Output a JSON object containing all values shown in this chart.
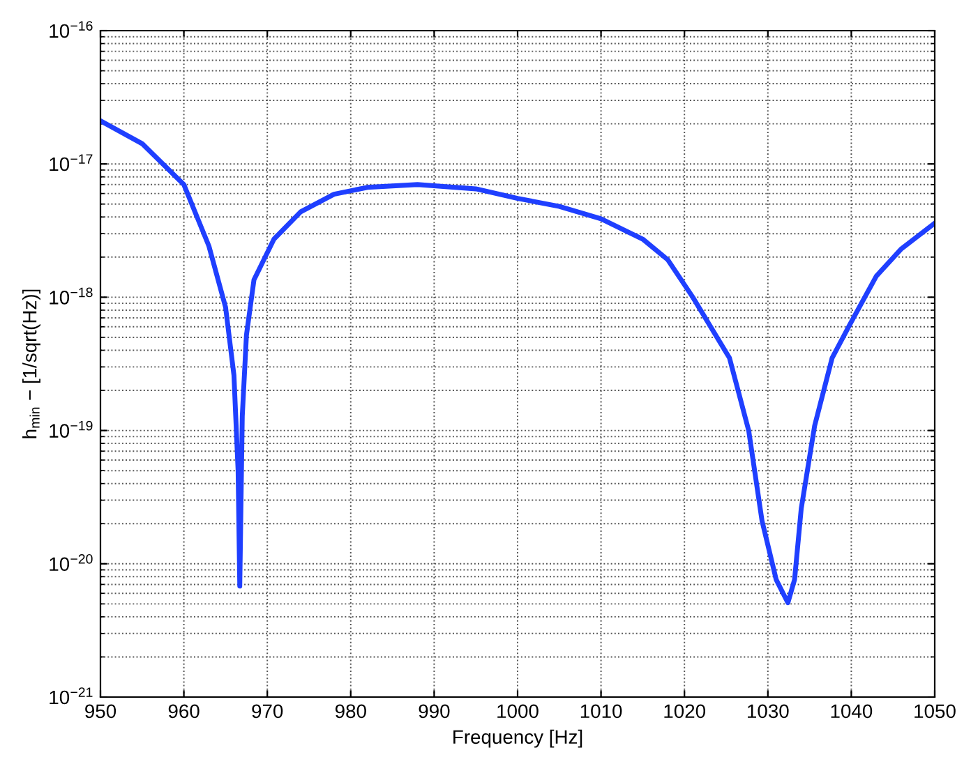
{
  "chart_data": {
    "type": "line",
    "xlabel": "Frequency [Hz]",
    "ylabel": "h$_{min}$ − [1/sqrt(Hz)]",
    "log": "y",
    "grid": true,
    "line_style": "solid",
    "marker": "none",
    "xlim": [
      950,
      1050
    ],
    "xticks": [
      950,
      960,
      970,
      980,
      990,
      1000,
      1010,
      1020,
      1030,
      1040,
      1050
    ],
    "ylim": [
      1e-21,
      1e-16
    ],
    "yticks": [
      {
        "value": 1e-21,
        "label": "10$^{−21}$"
      },
      {
        "value": 1e-20,
        "label": "10$^{−20}$"
      },
      {
        "value": 1e-19,
        "label": "10$^{−19}$"
      },
      {
        "value": 1e-18,
        "label": "10$^{−18}$"
      },
      {
        "value": 1e-17,
        "label": "10$^{−17}$"
      },
      {
        "value": 1e-16,
        "label": "10$^{−16}$"
      }
    ],
    "series": [
      {
        "color": "#1f3fff",
        "x": [
          950,
          955,
          960,
          963,
          965,
          966,
          966.5,
          966.7,
          967,
          967.5,
          968.4,
          970.8,
          974,
          978,
          982,
          988,
          995,
          1000,
          1005,
          1010,
          1015,
          1018,
          1021,
          1025.4,
          1027.7,
          1029.3,
          1031,
          1032.4,
          1033.2,
          1034,
          1035.6,
          1037.7,
          1039.8,
          1043,
          1046,
          1050
        ],
        "values": [
          2.11e-17,
          1.42e-17,
          7e-18,
          2.42e-18,
          8.4e-19,
          2.6e-19,
          5e-20,
          6.8e-21,
          1.28e-19,
          5.2e-19,
          1.35e-18,
          2.73e-18,
          4.37e-18,
          5.93e-18,
          6.67e-18,
          7e-18,
          6.5e-18,
          5.52e-18,
          4.8e-18,
          3.88e-18,
          2.73e-18,
          1.91e-18,
          1e-18,
          3.5e-19,
          1e-19,
          2.1e-20,
          7.6e-21,
          5.1e-21,
          7.6e-21,
          2.6e-20,
          1.08e-19,
          3.5e-19,
          6.2e-19,
          1.44e-18,
          2.31e-18,
          3.6e-18
        ]
      }
    ]
  }
}
